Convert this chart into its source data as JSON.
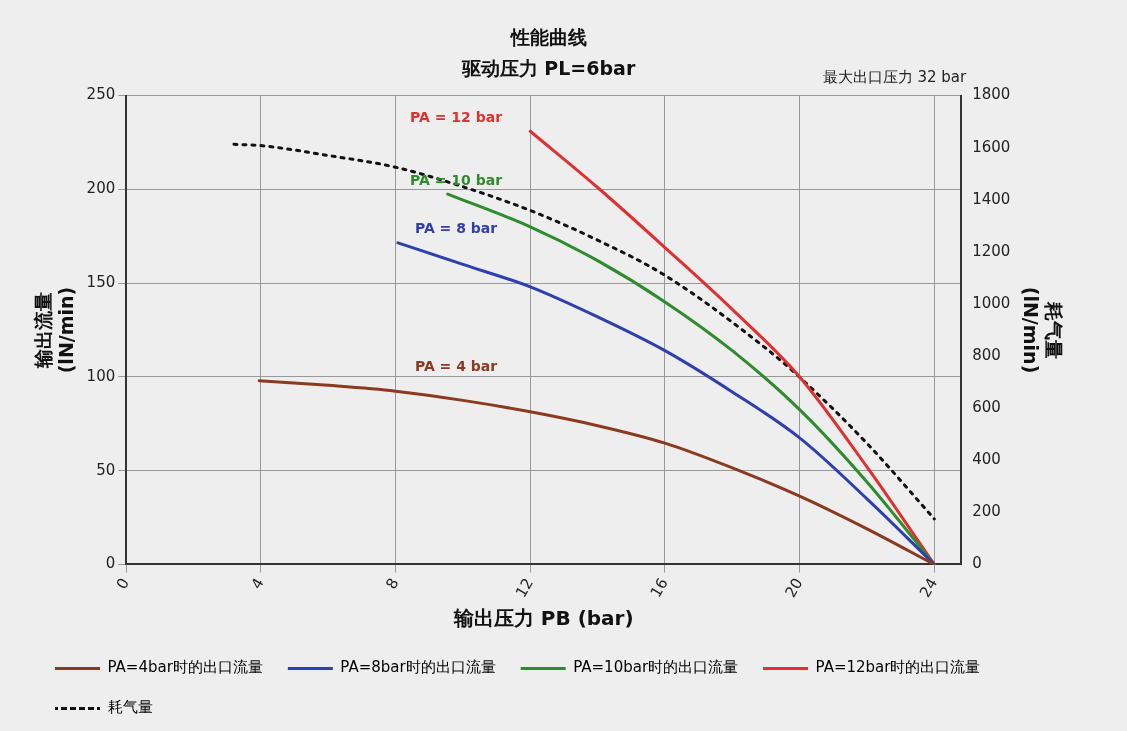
{
  "chart_data": {
    "type": "line",
    "title": "性能曲线",
    "subtitle": "驱动压力 PL=6bar",
    "xlabel": "输出压力 PB (bar)",
    "ylabel": "输出流量\n(lN/min)",
    "y2label": "耗气量\n(lN/min)",
    "xlim": [
      0,
      24.8
    ],
    "xticks": [
      0,
      4,
      8,
      12,
      16,
      20,
      24
    ],
    "ylim": [
      0,
      250
    ],
    "yticks": [
      0,
      50,
      100,
      150,
      200,
      250
    ],
    "y2lim": [
      0,
      1800
    ],
    "y2ticks": [
      0,
      200,
      400,
      600,
      800,
      1000,
      1200,
      1400,
      1600,
      1800
    ],
    "grid": true,
    "legend": "bottom",
    "marker": "none",
    "line_style": "solid",
    "series": [
      {
        "name": "PA=4bar时的出口流量",
        "color": "#8b3a1f",
        "x": [
          3.95,
          6,
          8,
          10,
          12,
          14,
          16,
          18,
          20,
          22,
          24
        ],
        "values": [
          98,
          95.5,
          92.4,
          87.5,
          81.4,
          74,
          64.7,
          51.5,
          36.4,
          19,
          0
        ]
      },
      {
        "name": "PA=8bar时的出口流量",
        "color": "#2e3fb0",
        "x": [
          8.07,
          10,
          12,
          14,
          16,
          18,
          20,
          22,
          24
        ],
        "values": [
          171.5,
          160,
          148,
          132,
          114,
          92,
          67.5,
          35,
          0
        ]
      },
      {
        "name": "PA=10bar时的出口流量",
        "color": "#2e8b2e",
        "x": [
          9.55,
          12,
          14,
          16,
          18,
          20,
          22,
          24
        ],
        "values": [
          197.5,
          180,
          162,
          140,
          114,
          82.6,
          44,
          0
        ]
      },
      {
        "name": "PA=12bar时的出口流量",
        "color": "#e03030",
        "x": [
          12,
          14,
          16,
          18,
          20,
          22,
          24
        ],
        "values": [
          231,
          201,
          169,
          136,
          100,
          52,
          0
        ]
      },
      {
        "name": "耗气量",
        "color": "#111111",
        "axis": "y2",
        "line_style": "dotted",
        "x": [
          3.2,
          4,
          6,
          8,
          10,
          12,
          14,
          16,
          18.9,
          20,
          22,
          24
        ],
        "values": [
          1613,
          1608,
          1570,
          1525,
          1450,
          1359,
          1245,
          1110,
          840,
          719,
          465,
          175
        ]
      }
    ],
    "annotations": [
      "PA = 4 bar",
      "PA = 8 bar",
      "PA = 10 bar",
      "PA = 12 bar",
      "最大出口压力 32 bar"
    ]
  }
}
